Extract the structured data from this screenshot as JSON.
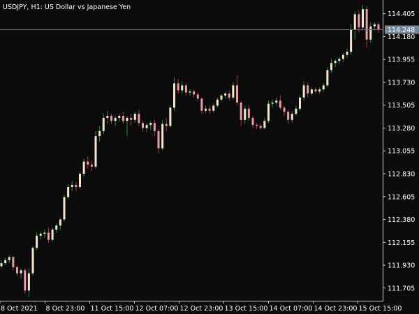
{
  "header": {
    "symbol_text": "USDJPY, H1:  US Dollar vs Japanese Yen"
  },
  "price_line": {
    "value": 114.248,
    "label": "114.248"
  },
  "colors": {
    "background": "#0b0b0b",
    "bull_body": "#f2e6cf",
    "bear_body": "#e79aa7",
    "bull_wick": "#2d8a44",
    "bear_wick": "#a23a4a",
    "axis": "#cfcfcf",
    "price_line": "#6b6b6b",
    "price_tag_bg": "#778899",
    "text": "#ffffff"
  },
  "chart_data": {
    "type": "candlestick",
    "title": "USDJPY, H1:  US Dollar vs Japanese Yen",
    "ylim": [
      111.58,
      114.54
    ],
    "y_ticks": [
      "114.405",
      "114.180",
      "113.955",
      "113.730",
      "113.505",
      "113.280",
      "113.055",
      "112.830",
      "112.605",
      "112.380",
      "112.155",
      "111.930",
      "111.705"
    ],
    "x_ticks": [
      "8 Oct 2021",
      "8 Oct 23:00",
      "11 Oct 15:00",
      "12 Oct 07:00",
      "12 Oct 23:00",
      "13 Oct 15:00",
      "14 Oct 07:00",
      "14 Oct 23:00",
      "15 Oct 15:00"
    ],
    "candles": [
      [
        111.92,
        111.98,
        111.9,
        111.95
      ],
      [
        111.95,
        112.0,
        111.93,
        111.98
      ],
      [
        111.98,
        112.03,
        111.95,
        112.01
      ],
      [
        112.01,
        112.02,
        111.88,
        111.91
      ],
      [
        111.91,
        111.93,
        111.82,
        111.85
      ],
      [
        111.85,
        111.9,
        111.8,
        111.88
      ],
      [
        111.88,
        111.9,
        111.65,
        111.68
      ],
      [
        111.68,
        111.9,
        111.62,
        111.85
      ],
      [
        111.85,
        112.12,
        111.83,
        112.1
      ],
      [
        112.1,
        112.25,
        112.08,
        112.22
      ],
      [
        112.22,
        112.26,
        112.18,
        112.24
      ],
      [
        112.24,
        112.28,
        112.2,
        112.25
      ],
      [
        112.25,
        112.3,
        112.15,
        112.18
      ],
      [
        112.18,
        112.3,
        112.16,
        112.28
      ],
      [
        112.28,
        112.34,
        112.25,
        112.32
      ],
      [
        112.32,
        112.4,
        112.28,
        112.38
      ],
      [
        112.38,
        112.62,
        112.36,
        112.6
      ],
      [
        112.6,
        112.73,
        112.58,
        112.7
      ],
      [
        112.7,
        112.76,
        112.66,
        112.72
      ],
      [
        112.72,
        112.75,
        112.66,
        112.7
      ],
      [
        112.7,
        112.85,
        112.68,
        112.83
      ],
      [
        112.83,
        112.98,
        112.8,
        112.95
      ],
      [
        112.95,
        113.0,
        112.88,
        112.92
      ],
      [
        112.92,
        112.96,
        112.86,
        112.9
      ],
      [
        112.9,
        113.25,
        112.88,
        113.2
      ],
      [
        113.2,
        113.3,
        113.15,
        113.25
      ],
      [
        113.25,
        113.42,
        113.22,
        113.38
      ],
      [
        113.38,
        113.45,
        113.32,
        113.4
      ],
      [
        113.4,
        113.42,
        113.32,
        113.35
      ],
      [
        113.35,
        113.4,
        113.3,
        113.38
      ],
      [
        113.38,
        113.42,
        113.34,
        113.4
      ],
      [
        113.4,
        113.44,
        113.32,
        113.35
      ],
      [
        113.35,
        113.4,
        113.2,
        113.38
      ],
      [
        113.38,
        113.42,
        113.3,
        113.36
      ],
      [
        113.36,
        113.44,
        113.33,
        113.42
      ],
      [
        113.42,
        113.46,
        113.3,
        113.33
      ],
      [
        113.33,
        113.35,
        113.24,
        113.28
      ],
      [
        113.28,
        113.33,
        113.24,
        113.31
      ],
      [
        113.31,
        113.35,
        113.26,
        113.33
      ],
      [
        113.33,
        113.36,
        113.2,
        113.25
      ],
      [
        113.25,
        113.27,
        113.03,
        113.08
      ],
      [
        113.08,
        113.36,
        113.06,
        113.32
      ],
      [
        113.32,
        113.38,
        113.25,
        113.3
      ],
      [
        113.3,
        113.5,
        113.28,
        113.48
      ],
      [
        113.48,
        113.78,
        113.45,
        113.72
      ],
      [
        113.72,
        113.76,
        113.62,
        113.65
      ],
      [
        113.65,
        113.74,
        113.62,
        113.7
      ],
      [
        113.7,
        113.72,
        113.6,
        113.63
      ],
      [
        113.63,
        113.66,
        113.6,
        113.64
      ],
      [
        113.64,
        113.66,
        113.58,
        113.61
      ],
      [
        113.61,
        113.63,
        113.54,
        113.57
      ],
      [
        113.57,
        113.58,
        113.42,
        113.45
      ],
      [
        113.45,
        113.5,
        113.43,
        113.47
      ],
      [
        113.47,
        113.5,
        113.42,
        113.45
      ],
      [
        113.45,
        113.52,
        113.43,
        113.5
      ],
      [
        113.5,
        113.58,
        113.48,
        113.56
      ],
      [
        113.56,
        113.62,
        113.54,
        113.6
      ],
      [
        113.6,
        113.64,
        113.57,
        113.62
      ],
      [
        113.62,
        113.65,
        113.55,
        113.58
      ],
      [
        113.58,
        113.73,
        113.56,
        113.7
      ],
      [
        113.7,
        113.8,
        113.5,
        113.53
      ],
      [
        113.53,
        113.55,
        113.3,
        113.36
      ],
      [
        113.36,
        113.5,
        113.32,
        113.47
      ],
      [
        113.47,
        113.5,
        113.35,
        113.38
      ],
      [
        113.38,
        113.4,
        113.28,
        113.31
      ],
      [
        113.31,
        113.33,
        113.27,
        113.3
      ],
      [
        113.3,
        113.32,
        113.26,
        113.28
      ],
      [
        113.28,
        113.38,
        113.27,
        113.35
      ],
      [
        113.35,
        113.55,
        113.33,
        113.52
      ],
      [
        113.52,
        113.56,
        113.48,
        113.53
      ],
      [
        113.53,
        113.58,
        113.5,
        113.55
      ],
      [
        113.55,
        113.6,
        113.46,
        113.48
      ],
      [
        113.48,
        113.5,
        113.4,
        113.44
      ],
      [
        113.44,
        113.46,
        113.32,
        113.36
      ],
      [
        113.36,
        113.45,
        113.33,
        113.42
      ],
      [
        113.42,
        113.5,
        113.4,
        113.47
      ],
      [
        113.47,
        113.6,
        113.45,
        113.58
      ],
      [
        113.58,
        113.74,
        113.55,
        113.7
      ],
      [
        113.7,
        113.73,
        113.58,
        113.62
      ],
      [
        113.62,
        113.68,
        113.6,
        113.66
      ],
      [
        113.66,
        113.68,
        113.62,
        113.64
      ],
      [
        113.64,
        113.68,
        113.62,
        113.66
      ],
      [
        113.66,
        113.72,
        113.64,
        113.7
      ],
      [
        113.7,
        113.88,
        113.68,
        113.85
      ],
      [
        113.85,
        113.96,
        113.82,
        113.92
      ],
      [
        113.92,
        113.96,
        113.88,
        113.94
      ],
      [
        113.94,
        113.98,
        113.9,
        113.96
      ],
      [
        113.96,
        114.02,
        113.93,
        114.0
      ],
      [
        114.0,
        114.06,
        113.97,
        114.03
      ],
      [
        114.03,
        114.3,
        114.0,
        114.25
      ],
      [
        114.25,
        114.43,
        114.15,
        114.4
      ],
      [
        114.4,
        114.44,
        114.22,
        114.27
      ],
      [
        114.27,
        114.49,
        114.24,
        114.45
      ],
      [
        114.45,
        114.48,
        114.07,
        114.15
      ],
      [
        114.15,
        114.32,
        114.12,
        114.28
      ],
      [
        114.28,
        114.32,
        114.24,
        114.3
      ],
      [
        114.3,
        114.32,
        114.22,
        114.25
      ]
    ]
  }
}
